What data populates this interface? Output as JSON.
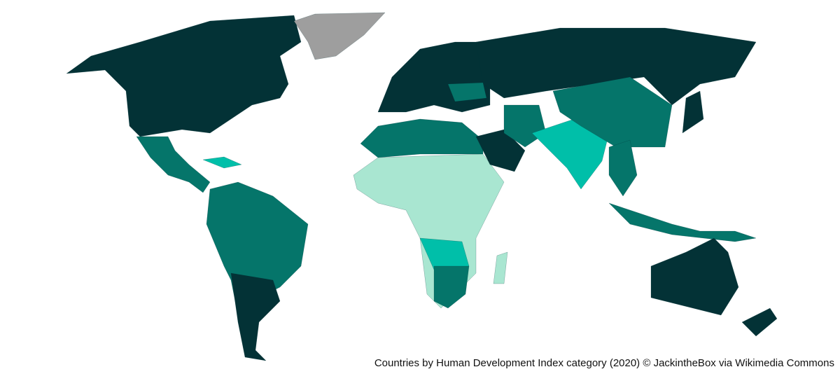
{
  "caption": "Countries by Human Development Index category (2020) © JackintheBox via Wikimedia Commons"
}
